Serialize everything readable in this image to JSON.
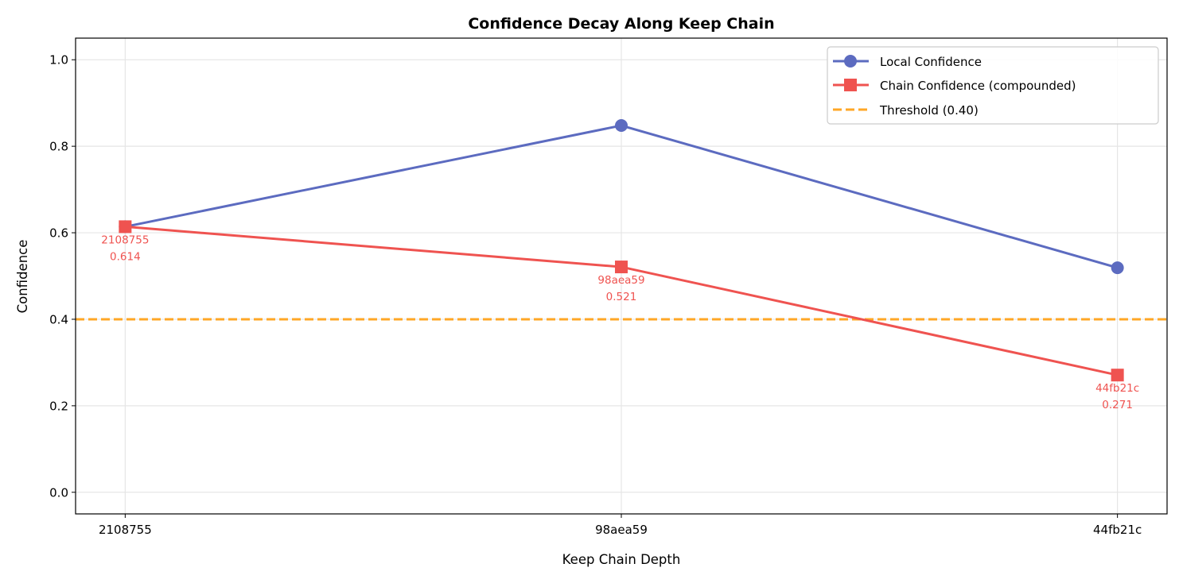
{
  "chart_data": {
    "type": "line",
    "title": "Confidence Decay Along Keep Chain",
    "xlabel": "Keep Chain Depth",
    "ylabel": "Confidence",
    "categories": [
      "2108755",
      "98aea59",
      "44fb21c"
    ],
    "xlim": [
      -0.1,
      2.1
    ],
    "ylim": [
      -0.05,
      1.05
    ],
    "yticks": [
      0.0,
      0.2,
      0.4,
      0.6,
      0.8,
      1.0
    ],
    "ytick_labels": [
      "0.0",
      "0.2",
      "0.4",
      "0.6",
      "0.8",
      "1.0"
    ],
    "grid": true,
    "legend_position": "top-right",
    "series": [
      {
        "name": "Local Confidence",
        "values": [
          0.614,
          0.848,
          0.519
        ],
        "color": "#5c6bc0",
        "marker": "circle"
      },
      {
        "name": "Chain Confidence (compounded)",
        "values": [
          0.614,
          0.521,
          0.271
        ],
        "color": "#ef5350",
        "marker": "square"
      }
    ],
    "threshold": {
      "name": "Threshold (0.40)",
      "value": 0.4,
      "color": "#ffa726",
      "style": "dashed"
    },
    "annotations": [
      {
        "label": "2108755",
        "value": "0.614"
      },
      {
        "label": "98aea59",
        "value": "0.521"
      },
      {
        "label": "44fb21c",
        "value": "0.271"
      }
    ]
  }
}
